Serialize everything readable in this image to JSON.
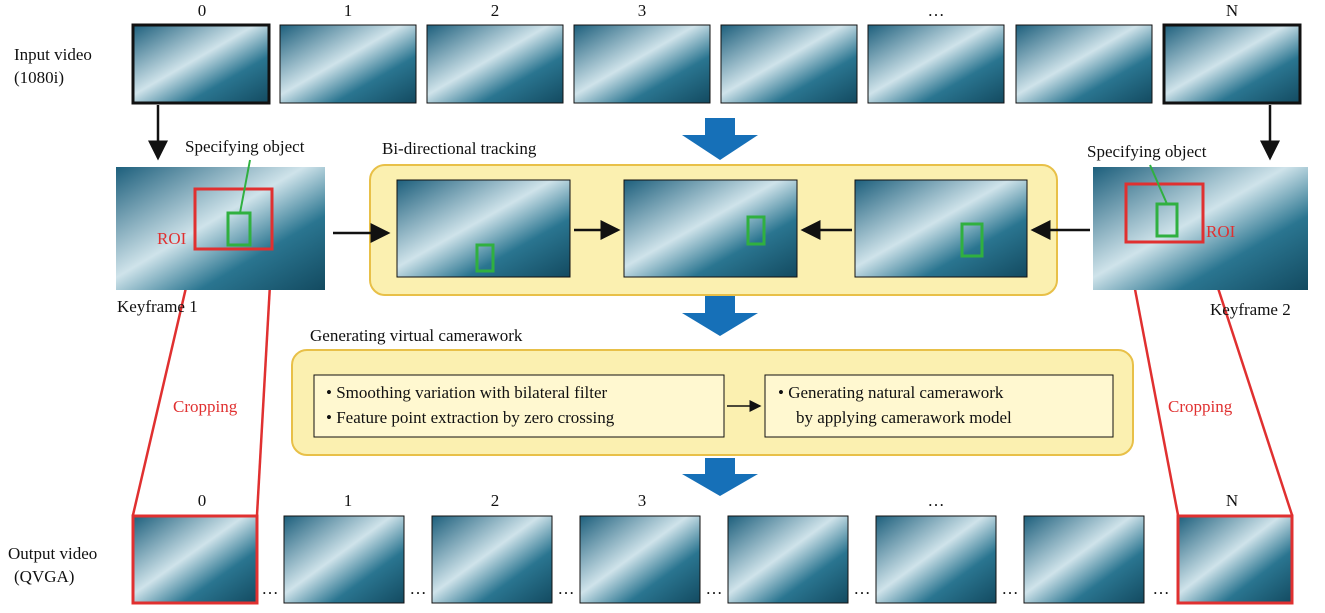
{
  "input": {
    "label": [
      "Input video",
      "(1080i)"
    ],
    "frame_labels": [
      "0",
      "1",
      "2",
      "3",
      "…",
      "N"
    ]
  },
  "keyframes": [
    {
      "label": "Keyframe 1",
      "specifying": "Specifying object",
      "roi": "ROI",
      "cropping": "Cropping"
    },
    {
      "label": "Keyframe 2",
      "specifying": "Specifying object",
      "roi": "ROI",
      "cropping": "Cropping"
    }
  ],
  "tracking": {
    "title": "Bi-directional tracking"
  },
  "camerawork": {
    "title": "Generating virtual camerawork",
    "left": [
      "• Smoothing variation with bilateral filter",
      "• Feature point extraction by zero crossing"
    ],
    "right": [
      "• Generating natural camerawork",
      "by applying camerawork model"
    ]
  },
  "output": {
    "label": [
      "Output video",
      "(QVGA)"
    ],
    "frame_labels": [
      "0",
      "1",
      "2",
      "3",
      "…",
      "N"
    ],
    "separator": "…"
  }
}
